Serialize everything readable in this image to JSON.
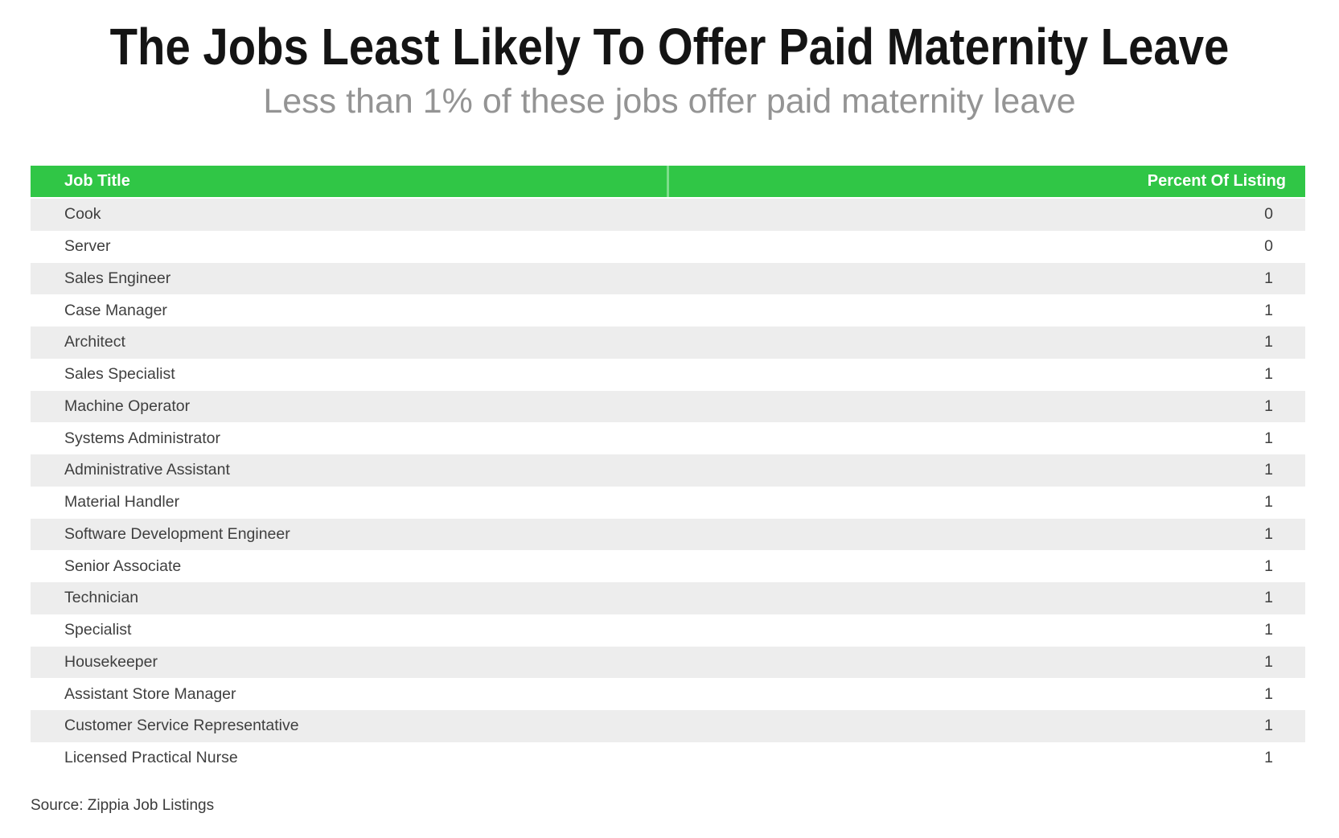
{
  "header": {
    "title": "The Jobs Least Likely To Offer Paid Maternity Leave",
    "subtitle": "Less than 1% of these jobs offer paid maternity leave"
  },
  "table": {
    "columns": [
      "Job Title",
      "Percent Of Listing"
    ],
    "rows": [
      {
        "job_title": "Cook",
        "percent": "0"
      },
      {
        "job_title": "Server",
        "percent": "0"
      },
      {
        "job_title": "Sales Engineer",
        "percent": "1"
      },
      {
        "job_title": "Case Manager",
        "percent": "1"
      },
      {
        "job_title": "Architect",
        "percent": "1"
      },
      {
        "job_title": "Sales Specialist",
        "percent": "1"
      },
      {
        "job_title": "Machine Operator",
        "percent": "1"
      },
      {
        "job_title": "Systems Administrator",
        "percent": "1"
      },
      {
        "job_title": "Administrative Assistant",
        "percent": "1"
      },
      {
        "job_title": "Material Handler",
        "percent": "1"
      },
      {
        "job_title": "Software Development Engineer",
        "percent": "1"
      },
      {
        "job_title": "Senior Associate",
        "percent": "1"
      },
      {
        "job_title": "Technician",
        "percent": "1"
      },
      {
        "job_title": "Specialist",
        "percent": "1"
      },
      {
        "job_title": "Housekeeper",
        "percent": "1"
      },
      {
        "job_title": "Assistant Store Manager",
        "percent": "1"
      },
      {
        "job_title": "Customer Service Representative",
        "percent": "1"
      },
      {
        "job_title": "Licensed Practical Nurse",
        "percent": "1"
      }
    ]
  },
  "source": "Source: Zippia Job Listings",
  "colors": {
    "header_green": "#30c646",
    "header_divider": "#7edd8b",
    "row_stripe": "#ededed",
    "row_text": "#3f3f3f",
    "subtitle_gray": "#949494"
  },
  "chart_data": {
    "type": "table",
    "title": "The Jobs Least Likely To Offer Paid Maternity Leave",
    "subtitle": "Less than 1% of these jobs offer paid maternity leave",
    "columns": [
      "Job Title",
      "Percent Of Listing"
    ],
    "categories": [
      "Cook",
      "Server",
      "Sales Engineer",
      "Case Manager",
      "Architect",
      "Sales Specialist",
      "Machine Operator",
      "Systems Administrator",
      "Administrative Assistant",
      "Material Handler",
      "Software Development Engineer",
      "Senior Associate",
      "Technician",
      "Specialist",
      "Housekeeper",
      "Assistant Store Manager",
      "Customer Service Representative",
      "Licensed Practical Nurse"
    ],
    "values": [
      0,
      0,
      1,
      1,
      1,
      1,
      1,
      1,
      1,
      1,
      1,
      1,
      1,
      1,
      1,
      1,
      1,
      1
    ],
    "legend": "off",
    "grid": "off",
    "source": "Source: Zippia Job Listings"
  }
}
